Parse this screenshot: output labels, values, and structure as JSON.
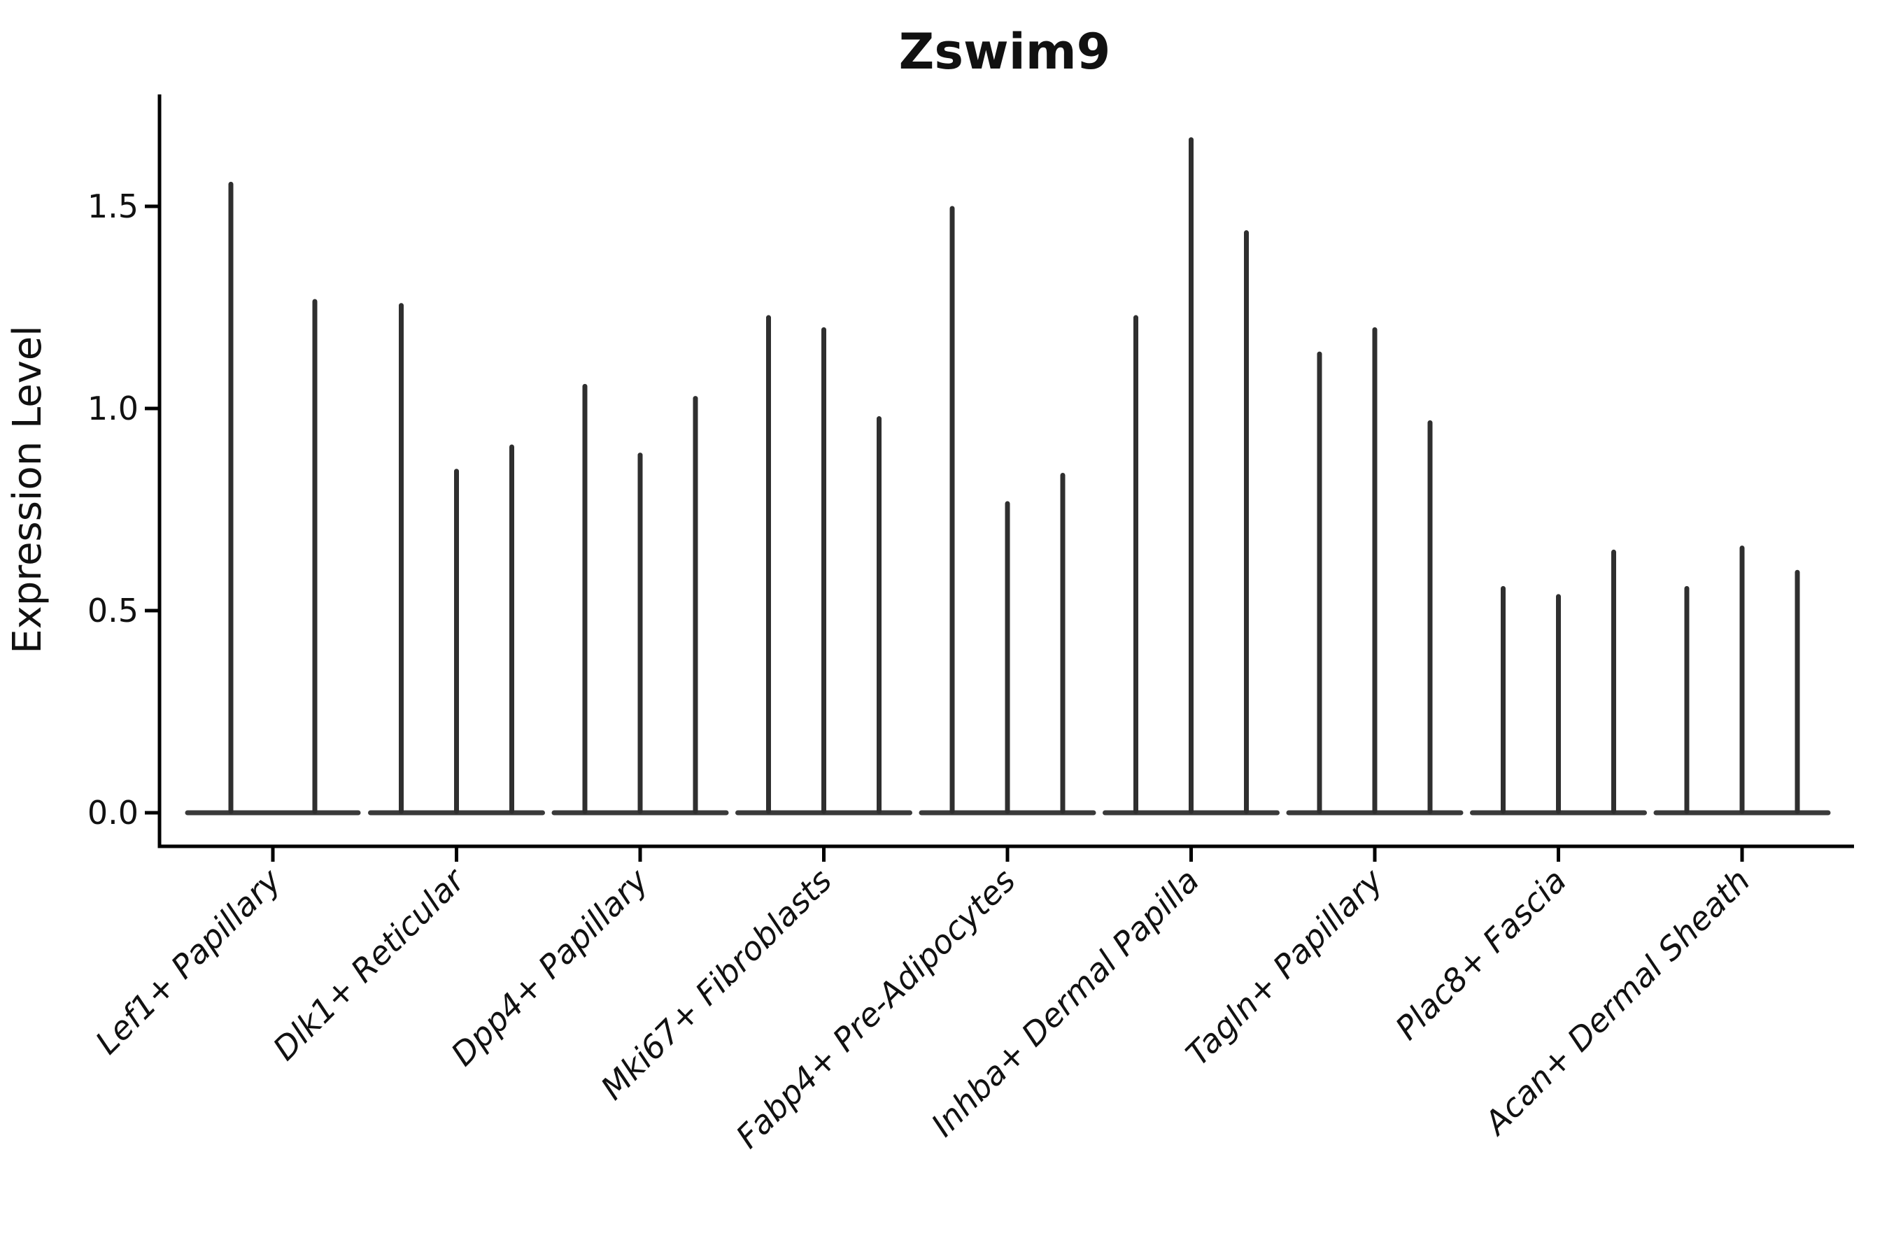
{
  "chart_data": {
    "type": "violin",
    "title": "Zswim9",
    "ylabel": "Expression Level",
    "xlabel": "",
    "background": "#ffffff",
    "grid": "off",
    "legend": "none",
    "ytick_labels": [
      "0.0",
      "0.5",
      "1.0",
      "1.5"
    ],
    "ytick_values": [
      0.0,
      0.5,
      1.0,
      1.5
    ],
    "ylim": [
      -0.08,
      1.77
    ],
    "note": "Each category shows thin spike-like violins (nearly all cells at 0 expression, flat base blob at y=0); violin_peaks = max expression reached by each violin spike, left to right.",
    "categories": [
      {
        "label": "Lef1+ Papillary",
        "violin_peaks": [
          1.56,
          1.27
        ]
      },
      {
        "label": "Dlk1+ Reticular",
        "violin_peaks": [
          1.26,
          0.85,
          0.91
        ]
      },
      {
        "label": "Dpp4+ Papillary",
        "violin_peaks": [
          1.06,
          0.89,
          1.03
        ]
      },
      {
        "label": "Mki67+ Fibroblasts",
        "violin_peaks": [
          1.23,
          1.2,
          0.98
        ]
      },
      {
        "label": "Fabp4+ Pre-Adipocytes",
        "violin_peaks": [
          1.5,
          0.77,
          0.84
        ]
      },
      {
        "label": "Inhba+ Dermal Papilla",
        "violin_peaks": [
          1.23,
          1.67,
          1.44
        ]
      },
      {
        "label": "Tagln+ Papillary",
        "violin_peaks": [
          1.14,
          1.2,
          0.97
        ]
      },
      {
        "label": "Plac8+ Fascia",
        "violin_peaks": [
          0.56,
          0.54,
          0.65
        ]
      },
      {
        "label": "Acan+ Dermal Sheath",
        "violin_peaks": [
          0.56,
          0.66,
          0.6
        ]
      }
    ],
    "colors": {
      "violin_stroke": "#2f2f2f",
      "violin_base": "#3a3a3a",
      "axis": "#000000",
      "text": "#111111",
      "background": "#ffffff"
    }
  }
}
